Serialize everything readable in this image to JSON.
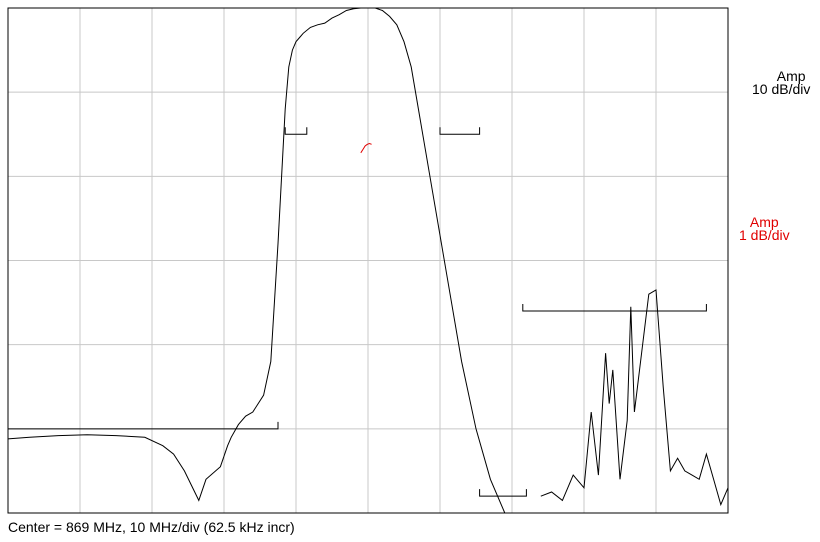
{
  "chart_data": {
    "type": "line",
    "title": "",
    "footer": "Center = 869 MHz, 10 MHz/div (62.5 kHz incr)",
    "x_axis": {
      "center_mhz": 869,
      "mhz_per_div": 10,
      "divisions": 10,
      "range_mhz": [
        819,
        919
      ]
    },
    "scales": [
      {
        "label_line1": "Amp",
        "label_line2": "10 dB/div",
        "color": "#000000"
      },
      {
        "label_line1": "Amp",
        "label_line2": "1 dB/div",
        "color": "#e00000"
      }
    ],
    "y_axis": {
      "divisions": 6,
      "unit": "dB",
      "range_db": [
        -60,
        0
      ]
    },
    "grid": true,
    "series": [
      {
        "scale": "10 dB/div",
        "color": "#000000",
        "x_mhz": [
          819,
          822,
          826,
          830,
          834,
          838,
          840.5,
          842,
          843.5,
          845.5,
          846.5,
          848.5,
          849.5,
          850,
          851,
          852,
          853,
          854.5,
          855.5,
          856.5,
          857.5,
          858,
          858.5,
          859,
          859.5,
          860,
          861,
          862,
          863,
          864,
          865,
          866,
          867,
          868,
          869,
          870,
          871,
          872,
          873,
          874,
          875,
          876,
          877,
          878,
          880,
          882,
          884,
          886,
          888
        ],
        "y_db": [
          -51.2,
          -51.0,
          -50.8,
          -50.7,
          -50.8,
          -51.0,
          -52.0,
          -53.0,
          -55.0,
          -58.5,
          -56.0,
          -54.5,
          -52.0,
          -51.0,
          -49.5,
          -48.5,
          -48.0,
          -46.0,
          -42.0,
          -28.0,
          -12.0,
          -7.0,
          -5.0,
          -4.0,
          -3.5,
          -3.0,
          -2.3,
          -2.0,
          -1.8,
          -1.2,
          -0.8,
          -0.3,
          -0.1,
          0.0,
          0.0,
          0.0,
          -0.3,
          -1.0,
          -2.0,
          -4.0,
          -7.0,
          -12.0,
          -17.0,
          -22.0,
          -32.0,
          -42.0,
          -50.0,
          -56.0,
          -60.0
        ]
      },
      {
        "scale": "10 dB/div",
        "color": "#000000",
        "x_mhz": [
          893,
          894.5,
          896,
          897.5,
          898,
          899,
          900,
          901,
          902,
          902.5,
          903,
          904,
          905,
          905.5,
          906,
          907,
          908,
          909,
          910,
          911,
          912,
          913,
          914,
          915,
          916,
          917,
          918,
          919
        ],
        "y_db": [
          -58.0,
          -57.5,
          -58.5,
          -55.5,
          -56.0,
          -57.0,
          -48.0,
          -55.5,
          -41.0,
          -47.0,
          -43.0,
          -56.0,
          -49.0,
          -35.5,
          -48.0,
          -41.0,
          -34.0,
          -33.5,
          -45.0,
          -55.0,
          -53.5,
          -55.0,
          -55.5,
          -56.0,
          -53.0,
          -56.0,
          -59.0,
          -57.0
        ]
      },
      {
        "scale": "1 dB/div",
        "color": "#e00000",
        "x_mhz": [
          868.0,
          868.3,
          868.6,
          868.9,
          869.2,
          869.5
        ],
        "y_db": [
          -17.2,
          -16.8,
          -16.4,
          -16.2,
          -16.1,
          -16.2
        ]
      }
    ],
    "limit_lines": [
      {
        "x_mhz": [
          819,
          856.5
        ],
        "y_db": -50
      },
      {
        "x_mhz": [
          857.5,
          860.5
        ],
        "y_db": -15
      },
      {
        "x_mhz": [
          879,
          884.5
        ],
        "y_db": -15
      },
      {
        "x_mhz": [
          884.5,
          891
        ],
        "y_db": -58
      },
      {
        "x_mhz": [
          890.5,
          916
        ],
        "y_db": -36
      }
    ]
  }
}
